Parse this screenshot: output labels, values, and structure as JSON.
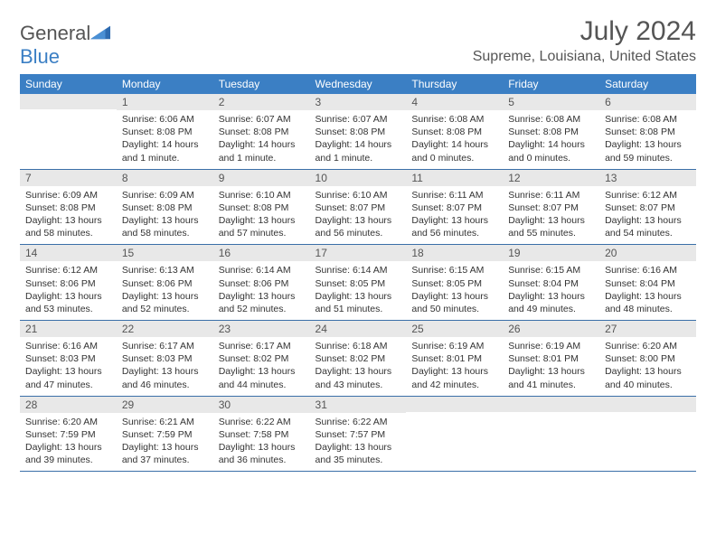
{
  "logo": {
    "text1": "General",
    "text2": "Blue"
  },
  "title": "July 2024",
  "location": "Supreme, Louisiana, United States",
  "colors": {
    "header_bg": "#3b7fc4",
    "header_text": "#ffffff",
    "daynum_bg": "#e8e8e8",
    "row_border": "#3b6fa8",
    "text": "#333333"
  },
  "dayNames": [
    "Sunday",
    "Monday",
    "Tuesday",
    "Wednesday",
    "Thursday",
    "Friday",
    "Saturday"
  ],
  "weeks": [
    [
      {
        "n": "",
        "sr": "",
        "ss": "",
        "dl": ""
      },
      {
        "n": "1",
        "sr": "Sunrise: 6:06 AM",
        "ss": "Sunset: 8:08 PM",
        "dl": "Daylight: 14 hours and 1 minute."
      },
      {
        "n": "2",
        "sr": "Sunrise: 6:07 AM",
        "ss": "Sunset: 8:08 PM",
        "dl": "Daylight: 14 hours and 1 minute."
      },
      {
        "n": "3",
        "sr": "Sunrise: 6:07 AM",
        "ss": "Sunset: 8:08 PM",
        "dl": "Daylight: 14 hours and 1 minute."
      },
      {
        "n": "4",
        "sr": "Sunrise: 6:08 AM",
        "ss": "Sunset: 8:08 PM",
        "dl": "Daylight: 14 hours and 0 minutes."
      },
      {
        "n": "5",
        "sr": "Sunrise: 6:08 AM",
        "ss": "Sunset: 8:08 PM",
        "dl": "Daylight: 14 hours and 0 minutes."
      },
      {
        "n": "6",
        "sr": "Sunrise: 6:08 AM",
        "ss": "Sunset: 8:08 PM",
        "dl": "Daylight: 13 hours and 59 minutes."
      }
    ],
    [
      {
        "n": "7",
        "sr": "Sunrise: 6:09 AM",
        "ss": "Sunset: 8:08 PM",
        "dl": "Daylight: 13 hours and 58 minutes."
      },
      {
        "n": "8",
        "sr": "Sunrise: 6:09 AM",
        "ss": "Sunset: 8:08 PM",
        "dl": "Daylight: 13 hours and 58 minutes."
      },
      {
        "n": "9",
        "sr": "Sunrise: 6:10 AM",
        "ss": "Sunset: 8:08 PM",
        "dl": "Daylight: 13 hours and 57 minutes."
      },
      {
        "n": "10",
        "sr": "Sunrise: 6:10 AM",
        "ss": "Sunset: 8:07 PM",
        "dl": "Daylight: 13 hours and 56 minutes."
      },
      {
        "n": "11",
        "sr": "Sunrise: 6:11 AM",
        "ss": "Sunset: 8:07 PM",
        "dl": "Daylight: 13 hours and 56 minutes."
      },
      {
        "n": "12",
        "sr": "Sunrise: 6:11 AM",
        "ss": "Sunset: 8:07 PM",
        "dl": "Daylight: 13 hours and 55 minutes."
      },
      {
        "n": "13",
        "sr": "Sunrise: 6:12 AM",
        "ss": "Sunset: 8:07 PM",
        "dl": "Daylight: 13 hours and 54 minutes."
      }
    ],
    [
      {
        "n": "14",
        "sr": "Sunrise: 6:12 AM",
        "ss": "Sunset: 8:06 PM",
        "dl": "Daylight: 13 hours and 53 minutes."
      },
      {
        "n": "15",
        "sr": "Sunrise: 6:13 AM",
        "ss": "Sunset: 8:06 PM",
        "dl": "Daylight: 13 hours and 52 minutes."
      },
      {
        "n": "16",
        "sr": "Sunrise: 6:14 AM",
        "ss": "Sunset: 8:06 PM",
        "dl": "Daylight: 13 hours and 52 minutes."
      },
      {
        "n": "17",
        "sr": "Sunrise: 6:14 AM",
        "ss": "Sunset: 8:05 PM",
        "dl": "Daylight: 13 hours and 51 minutes."
      },
      {
        "n": "18",
        "sr": "Sunrise: 6:15 AM",
        "ss": "Sunset: 8:05 PM",
        "dl": "Daylight: 13 hours and 50 minutes."
      },
      {
        "n": "19",
        "sr": "Sunrise: 6:15 AM",
        "ss": "Sunset: 8:04 PM",
        "dl": "Daylight: 13 hours and 49 minutes."
      },
      {
        "n": "20",
        "sr": "Sunrise: 6:16 AM",
        "ss": "Sunset: 8:04 PM",
        "dl": "Daylight: 13 hours and 48 minutes."
      }
    ],
    [
      {
        "n": "21",
        "sr": "Sunrise: 6:16 AM",
        "ss": "Sunset: 8:03 PM",
        "dl": "Daylight: 13 hours and 47 minutes."
      },
      {
        "n": "22",
        "sr": "Sunrise: 6:17 AM",
        "ss": "Sunset: 8:03 PM",
        "dl": "Daylight: 13 hours and 46 minutes."
      },
      {
        "n": "23",
        "sr": "Sunrise: 6:17 AM",
        "ss": "Sunset: 8:02 PM",
        "dl": "Daylight: 13 hours and 44 minutes."
      },
      {
        "n": "24",
        "sr": "Sunrise: 6:18 AM",
        "ss": "Sunset: 8:02 PM",
        "dl": "Daylight: 13 hours and 43 minutes."
      },
      {
        "n": "25",
        "sr": "Sunrise: 6:19 AM",
        "ss": "Sunset: 8:01 PM",
        "dl": "Daylight: 13 hours and 42 minutes."
      },
      {
        "n": "26",
        "sr": "Sunrise: 6:19 AM",
        "ss": "Sunset: 8:01 PM",
        "dl": "Daylight: 13 hours and 41 minutes."
      },
      {
        "n": "27",
        "sr": "Sunrise: 6:20 AM",
        "ss": "Sunset: 8:00 PM",
        "dl": "Daylight: 13 hours and 40 minutes."
      }
    ],
    [
      {
        "n": "28",
        "sr": "Sunrise: 6:20 AM",
        "ss": "Sunset: 7:59 PM",
        "dl": "Daylight: 13 hours and 39 minutes."
      },
      {
        "n": "29",
        "sr": "Sunrise: 6:21 AM",
        "ss": "Sunset: 7:59 PM",
        "dl": "Daylight: 13 hours and 37 minutes."
      },
      {
        "n": "30",
        "sr": "Sunrise: 6:22 AM",
        "ss": "Sunset: 7:58 PM",
        "dl": "Daylight: 13 hours and 36 minutes."
      },
      {
        "n": "31",
        "sr": "Sunrise: 6:22 AM",
        "ss": "Sunset: 7:57 PM",
        "dl": "Daylight: 13 hours and 35 minutes."
      },
      {
        "n": "",
        "sr": "",
        "ss": "",
        "dl": ""
      },
      {
        "n": "",
        "sr": "",
        "ss": "",
        "dl": ""
      },
      {
        "n": "",
        "sr": "",
        "ss": "",
        "dl": ""
      }
    ]
  ]
}
